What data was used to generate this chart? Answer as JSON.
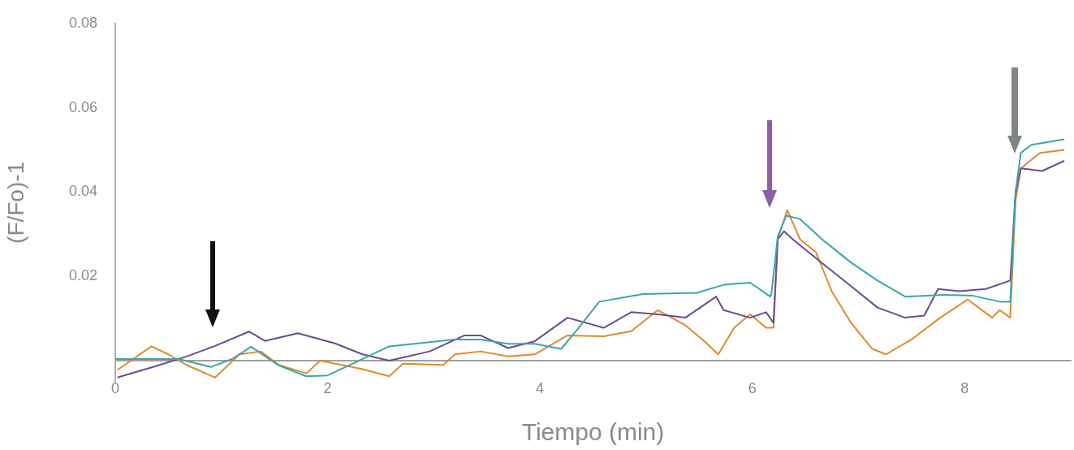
{
  "chart_data": {
    "type": "line",
    "xlabel": "Tiempo (min)",
    "ylabel": "(F/Fo)-1",
    "xlim": [
      0,
      9
    ],
    "xticks": [
      0,
      2,
      4,
      6,
      8
    ],
    "ylim": [
      -0.005,
      0.08
    ],
    "yticks": [
      0.02,
      0.04,
      0.06,
      0.08
    ],
    "grid": false,
    "legend": false,
    "marker": "none",
    "line_style": "solid",
    "series": [
      {
        "color": "#3aa6ad",
        "x": [
          0,
          0.3,
          0.6,
          0.9,
          1.1,
          1.28,
          1.53,
          1.8,
          2.0,
          2.27,
          2.58,
          3.19,
          3.44,
          3.7,
          3.95,
          4.2,
          4.34,
          4.56,
          4.97,
          5.48,
          5.73,
          5.98,
          6.17,
          6.18,
          6.24,
          6.32,
          6.45,
          6.68,
          6.93,
          7.18,
          7.44,
          7.82,
          8.08,
          8.33,
          8.43,
          8.48,
          8.53,
          8.63,
          8.94
        ],
        "values": [
          0.0004,
          0.0004,
          0.0004,
          -0.0015,
          0.0004,
          0.0033,
          -0.001,
          -0.0037,
          -0.0035,
          -0.0003,
          0.0034,
          0.005,
          0.005,
          0.004,
          0.004,
          0.0028,
          0.007,
          0.014,
          0.0158,
          0.0161,
          0.018,
          0.0185,
          0.0152,
          0.0158,
          0.0294,
          0.0344,
          0.0336,
          0.0283,
          0.0233,
          0.019,
          0.0152,
          0.0156,
          0.0154,
          0.014,
          0.014,
          0.04,
          0.0493,
          0.0512,
          0.0525
        ]
      },
      {
        "color": "#6a4c93",
        "x": [
          0.02,
          0.42,
          0.67,
          0.93,
          1.26,
          1.41,
          1.72,
          2.07,
          2.33,
          2.58,
          2.96,
          3.29,
          3.44,
          3.7,
          3.95,
          4.26,
          4.6,
          4.86,
          5.11,
          5.37,
          5.66,
          5.73,
          5.98,
          6.13,
          6.2,
          6.24,
          6.3,
          6.38,
          6.68,
          6.93,
          7.18,
          7.44,
          7.62,
          7.75,
          7.95,
          8.2,
          8.43,
          8.48,
          8.53,
          8.73,
          8.94
        ],
        "values": [
          -0.004,
          -0.001,
          0.001,
          0.0034,
          0.0069,
          0.0047,
          0.0065,
          0.0041,
          0.0015,
          0,
          0.0022,
          0.006,
          0.006,
          0.003,
          0.0046,
          0.0102,
          0.0078,
          0.0115,
          0.011,
          0.0102,
          0.0152,
          0.012,
          0.0102,
          0.0115,
          0.009,
          0.0288,
          0.0307,
          0.0288,
          0.0227,
          0.0177,
          0.0126,
          0.0102,
          0.0107,
          0.017,
          0.0165,
          0.017,
          0.019,
          0.04,
          0.0456,
          0.045,
          0.0474
        ]
      },
      {
        "color": "#e08a2c",
        "x": [
          0.02,
          0.34,
          0.5,
          0.67,
          0.94,
          1.17,
          1.37,
          1.54,
          1.8,
          1.93,
          2.33,
          2.58,
          2.71,
          3.09,
          3.2,
          3.44,
          3.7,
          3.95,
          4.26,
          4.6,
          4.86,
          5.11,
          5.37,
          5.55,
          5.68,
          5.83,
          5.98,
          6.13,
          6.2,
          6.24,
          6.33,
          6.45,
          6.6,
          6.75,
          6.93,
          7.13,
          7.26,
          7.51,
          7.77,
          8.03,
          8.26,
          8.33,
          8.43,
          8.48,
          8.53,
          8.71,
          8.94
        ],
        "values": [
          -0.0022,
          0.0034,
          0.0015,
          -0.001,
          -0.004,
          0.0015,
          0.0022,
          -0.001,
          -0.003,
          0,
          -0.002,
          -0.0037,
          -0.0007,
          -0.001,
          0.0015,
          0.0022,
          0.001,
          0.0015,
          0.006,
          0.0058,
          0.007,
          0.012,
          0.0084,
          0.0046,
          0.0015,
          0.0078,
          0.011,
          0.0078,
          0.0078,
          0.0288,
          0.0357,
          0.0288,
          0.0257,
          0.0164,
          0.009,
          0.0028,
          0.0015,
          0.0052,
          0.0102,
          0.0145,
          0.0102,
          0.012,
          0.0102,
          0.038,
          0.0456,
          0.0493,
          0.05
        ]
      }
    ]
  }
}
